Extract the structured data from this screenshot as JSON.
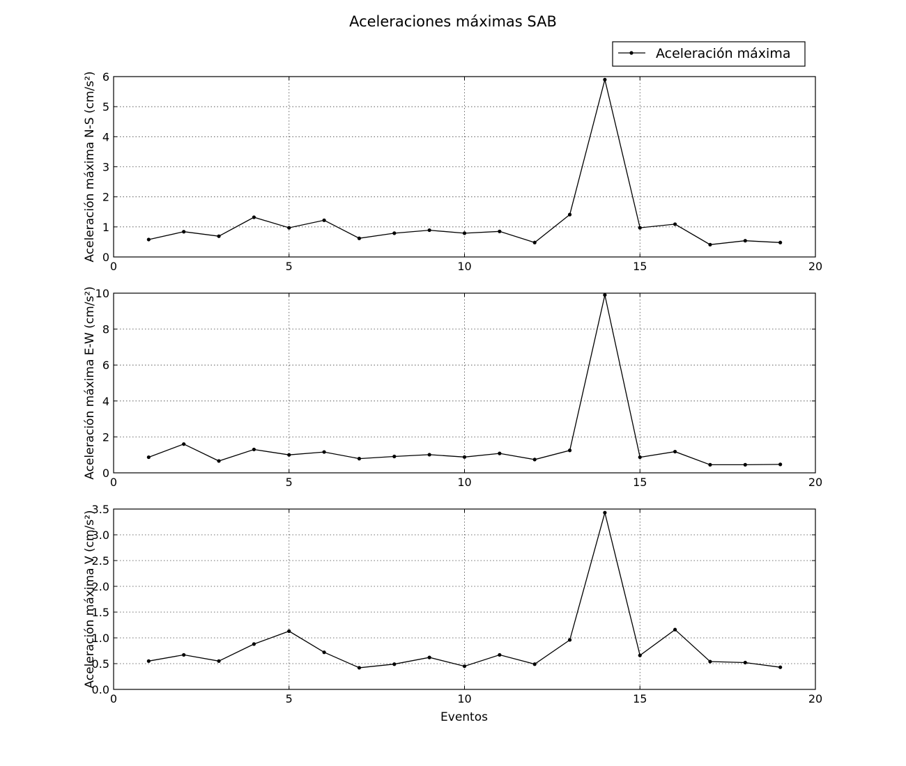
{
  "chart_data": {
    "type": "line",
    "title": "Aceleraciones máximas SAB",
    "legend": {
      "label": "Aceleración máxima",
      "placement": "top-right"
    },
    "xlabel": "Eventos",
    "series_color": "#000000",
    "grid": true,
    "panels": [
      {
        "ylabel": "Aceleración máxima N-S (cm/s²)",
        "xlim": [
          0,
          20
        ],
        "ylim": [
          0,
          6
        ],
        "xticks": [
          "0",
          "5",
          "10",
          "15",
          "20"
        ],
        "yticks": [
          "0",
          "1",
          "2",
          "3",
          "4",
          "5",
          "6"
        ],
        "x": [
          1,
          2,
          3,
          4,
          5,
          6,
          7,
          8,
          9,
          10,
          11,
          12,
          13,
          14,
          15,
          16,
          17,
          18,
          19
        ],
        "y": [
          0.58,
          0.84,
          0.69,
          1.32,
          0.97,
          1.22,
          0.62,
          0.79,
          0.89,
          0.79,
          0.85,
          0.48,
          1.41,
          5.9,
          0.97,
          1.09,
          0.41,
          0.54,
          0.48
        ]
      },
      {
        "ylabel": "Aceleración máxima E-W (cm/s²)",
        "xlim": [
          0,
          20
        ],
        "ylim": [
          0,
          10
        ],
        "xticks": [
          "0",
          "5",
          "10",
          "15",
          "20"
        ],
        "yticks": [
          "0",
          "2",
          "4",
          "6",
          "8",
          "10"
        ],
        "x": [
          1,
          2,
          3,
          4,
          5,
          6,
          7,
          8,
          9,
          10,
          11,
          12,
          13,
          14,
          15,
          16,
          17,
          18,
          19
        ],
        "y": [
          0.87,
          1.6,
          0.66,
          1.3,
          1.0,
          1.16,
          0.79,
          0.91,
          1.01,
          0.88,
          1.08,
          0.74,
          1.25,
          9.9,
          0.87,
          1.18,
          0.45,
          0.45,
          0.47
        ]
      },
      {
        "ylabel": "Aceleración máxima V (cm/s²)",
        "xlim": [
          0,
          20
        ],
        "ylim": [
          0,
          3.5
        ],
        "xticks": [
          "0",
          "5",
          "10",
          "15",
          "20"
        ],
        "yticks": [
          "0.0",
          "0.5",
          "1.0",
          "1.5",
          "2.0",
          "2.5",
          "3.0",
          "3.5"
        ],
        "x": [
          1,
          2,
          3,
          4,
          5,
          6,
          7,
          8,
          9,
          10,
          11,
          12,
          13,
          14,
          15,
          16,
          17,
          18,
          19
        ],
        "y": [
          0.55,
          0.67,
          0.55,
          0.88,
          1.13,
          0.72,
          0.42,
          0.49,
          0.62,
          0.45,
          0.67,
          0.49,
          0.96,
          3.43,
          0.66,
          1.16,
          0.54,
          0.52,
          0.43
        ]
      }
    ]
  }
}
